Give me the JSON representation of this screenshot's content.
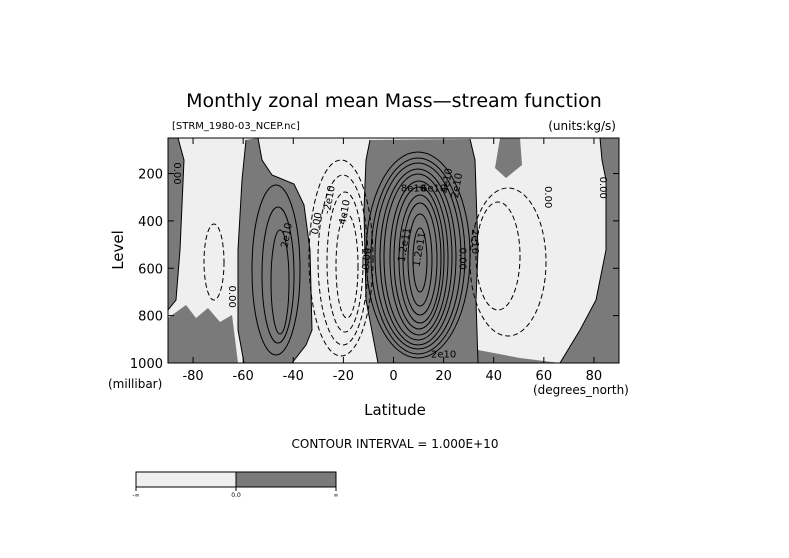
{
  "chart_data": {
    "type": "contour",
    "title": "Monthly zonal mean Mass—stream function",
    "source_file": "[STRM_1980-03_NCEP.nc]",
    "units_label": "(units:kg/s)",
    "xlabel": "Latitude",
    "x_units": "(degrees_north)",
    "ylabel": "Level",
    "y_units": "(millibar)",
    "xlim": [
      -90,
      90
    ],
    "ylim": [
      1000,
      50
    ],
    "x_ticks": [
      -80,
      -60,
      -40,
      -20,
      0,
      20,
      40,
      60,
      80
    ],
    "x_tick_labels": [
      "-80",
      "-60",
      "-40",
      "-20",
      "0",
      "20",
      "40",
      "60",
      "80"
    ],
    "y_ticks": [
      200,
      400,
      600,
      800,
      1000
    ],
    "y_tick_labels": [
      "200",
      "400",
      "600",
      "800",
      "1000"
    ],
    "contour_interval_text": "CONTOUR INTERVAL = 1.000E+10",
    "contour_interval": 10000000000,
    "shading": {
      "negative_color": "#efefef",
      "positive_color": "#7a7a7a",
      "threshold": 0
    },
    "colorbar_labels": [
      "-∞",
      "0.0",
      "∞"
    ],
    "contour_labels": [
      {
        "text": "0.00",
        "lat": -86,
        "lev": 200,
        "rot": 90
      },
      {
        "text": "2e10",
        "lat": -43,
        "lev": 460,
        "rot": -80
      },
      {
        "text": "0.00",
        "lat": -64,
        "lev": 720,
        "rot": 90
      },
      {
        "text": "0.00",
        "lat": -31,
        "lev": 410,
        "rot": -80
      },
      {
        "text": "-2e10",
        "lat": -26,
        "lev": 310,
        "rot": -80
      },
      {
        "text": "-4e10",
        "lat": -20,
        "lev": 370,
        "rot": -80
      },
      {
        "text": "0.00",
        "lat": -11,
        "lev": 560,
        "rot": -85
      },
      {
        "text": "8e10",
        "lat": 8,
        "lev": 260,
        "rot": 0
      },
      {
        "text": "6e10",
        "lat": 16,
        "lev": 260,
        "rot": 0
      },
      {
        "text": "4e10",
        "lat": 21,
        "lev": 230,
        "rot": -80
      },
      {
        "text": "2e10",
        "lat": 25,
        "lev": 250,
        "rot": -80
      },
      {
        "text": "1.2e11",
        "lat": 4,
        "lev": 500,
        "rot": -80
      },
      {
        "text": "1.2e11",
        "lat": 10,
        "lev": 520,
        "rot": -80
      },
      {
        "text": "2e10",
        "lat": 20,
        "lev": 960,
        "rot": 0
      },
      {
        "text": "-2e10",
        "lat": 33,
        "lev": 480,
        "rot": 90
      },
      {
        "text": "0.00",
        "lat": 28,
        "lev": 560,
        "rot": 90
      },
      {
        "text": "0.00",
        "lat": 62,
        "lev": 300,
        "rot": 90
      },
      {
        "text": "0.00",
        "lat": 84,
        "lev": 260,
        "rot": 90
      }
    ]
  }
}
